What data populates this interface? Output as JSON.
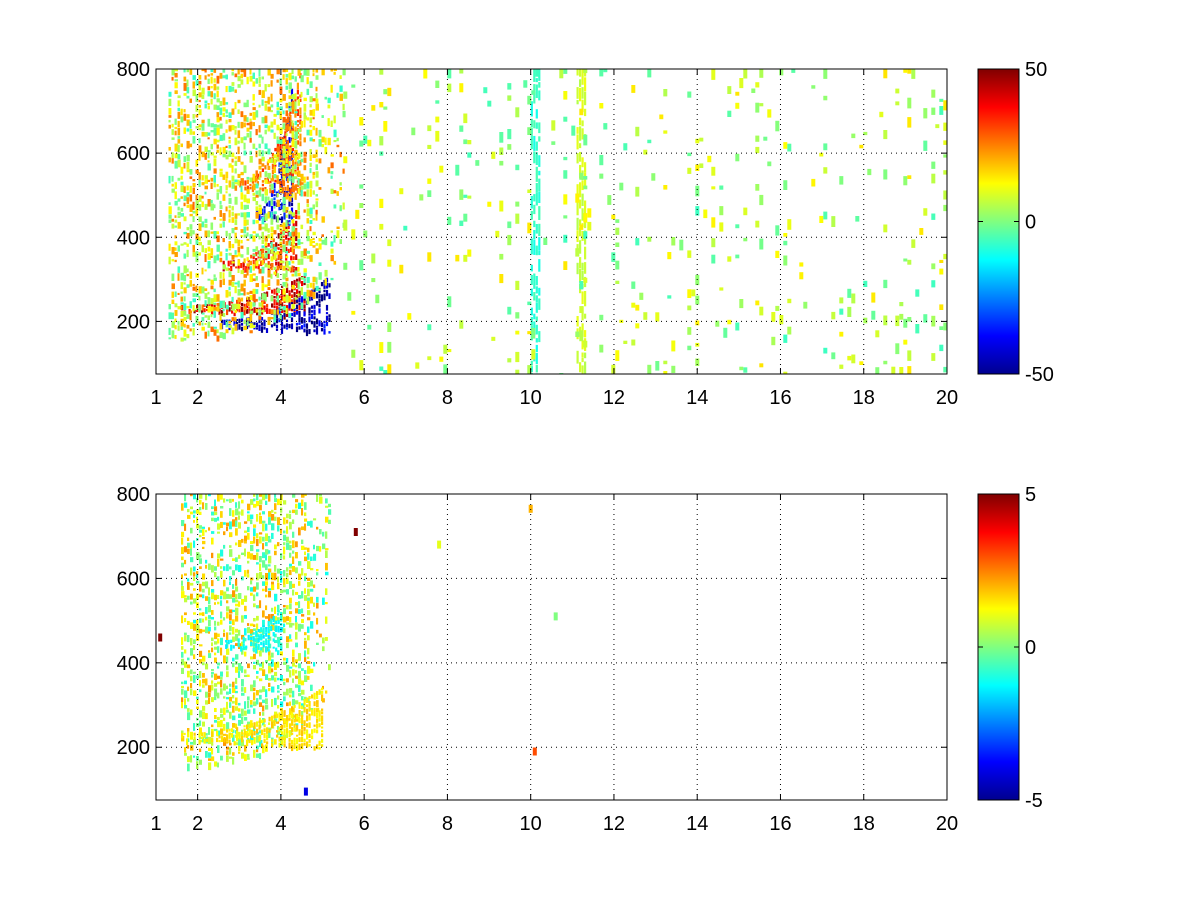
{
  "chart_data": [
    {
      "type": "heatmap",
      "title": "",
      "xlabel": "",
      "ylabel": "",
      "xlim": [
        1,
        20
      ],
      "ylim": [
        75,
        800
      ],
      "x_ticks": [
        1,
        2,
        4,
        6,
        8,
        10,
        12,
        14,
        16,
        18,
        20
      ],
      "x_tick_labels": [
        "1",
        "2",
        "4",
        "6",
        "8",
        "10",
        "12",
        "14",
        "16",
        "18",
        "20"
      ],
      "y_ticks": [
        200,
        400,
        600,
        800
      ],
      "y_tick_labels": [
        "200",
        "400",
        "600",
        "800"
      ],
      "grid": true,
      "colormap": "jet",
      "clim": [
        -50,
        50
      ],
      "colorbar_ticks": [
        -50,
        0,
        50
      ],
      "colorbar_tick_labels": [
        "-50",
        "0",
        "50"
      ],
      "features": [
        {
          "kind": "band",
          "x": [
            1.6,
            4.6
          ],
          "y_start": [
            225,
            215
          ],
          "y_end": [
            225,
            300
          ],
          "value": 40
        },
        {
          "kind": "band",
          "x": [
            2.5,
            5.2
          ],
          "y_start": [
            190,
            175
          ],
          "y_end": [
            190,
            300
          ],
          "value": -45
        },
        {
          "kind": "band",
          "x": [
            2.6,
            4.4
          ],
          "y_start": [
            330,
            320
          ],
          "y_end": [
            330,
            460
          ],
          "value": 38
        },
        {
          "kind": "band",
          "x": [
            3.4,
            4.3
          ],
          "y_start": [
            450,
            430
          ],
          "y_end": [
            450,
            800
          ],
          "value": -40
        },
        {
          "kind": "band",
          "x": [
            3.0,
            4.5
          ],
          "y_start": [
            520,
            500
          ],
          "y_end": [
            520,
            800
          ],
          "value": 28
        },
        {
          "kind": "region",
          "x": [
            1.3,
            5.5
          ],
          "y": [
            160,
            800
          ],
          "value": 10
        },
        {
          "kind": "stripe",
          "x": [
            11.1,
            11.3
          ],
          "y": [
            75,
            800
          ],
          "value": 8
        },
        {
          "kind": "stripe",
          "x": [
            10.0,
            10.2
          ],
          "y": [
            75,
            800
          ],
          "value": -8
        },
        {
          "kind": "scatter",
          "x": [
            5.5,
            20
          ],
          "y": [
            75,
            800
          ],
          "value": 0
        }
      ]
    },
    {
      "type": "heatmap",
      "title": "",
      "xlabel": "",
      "ylabel": "",
      "xlim": [
        1,
        20
      ],
      "ylim": [
        75,
        800
      ],
      "x_ticks": [
        1,
        2,
        4,
        6,
        8,
        10,
        12,
        14,
        16,
        18,
        20
      ],
      "x_tick_labels": [
        "1",
        "2",
        "4",
        "6",
        "8",
        "10",
        "12",
        "14",
        "16",
        "18",
        "20"
      ],
      "y_ticks": [
        200,
        400,
        600,
        800
      ],
      "y_tick_labels": [
        "200",
        "400",
        "600",
        "800"
      ],
      "grid": true,
      "colormap": "jet",
      "clim": [
        -5,
        5
      ],
      "colorbar_ticks": [
        -5,
        0,
        5
      ],
      "colorbar_tick_labels": [
        "-5",
        "0",
        "5"
      ],
      "features": [
        {
          "kind": "region",
          "x": [
            1.6,
            5.2
          ],
          "y": [
            160,
            800
          ],
          "value": 0.6
        },
        {
          "kind": "band",
          "x": [
            1.6,
            5.0
          ],
          "y_start": [
            220,
            200
          ],
          "y_end": [
            220,
            330
          ],
          "value": 1.5
        },
        {
          "kind": "band",
          "x": [
            2.6,
            4.0
          ],
          "y_start": [
            440,
            430
          ],
          "y_end": [
            440,
            520
          ],
          "value": -1.2
        },
        {
          "kind": "dots",
          "points": [
            [
              10.6,
              510,
              0
            ],
            [
              7.8,
              680,
              1
            ],
            [
              10.0,
              765,
              2
            ],
            [
              10.1,
              190,
              3
            ],
            [
              1.1,
              460,
              5
            ],
            [
              5.8,
              710,
              5
            ],
            [
              4.6,
              95,
              -4
            ]
          ]
        }
      ]
    }
  ]
}
